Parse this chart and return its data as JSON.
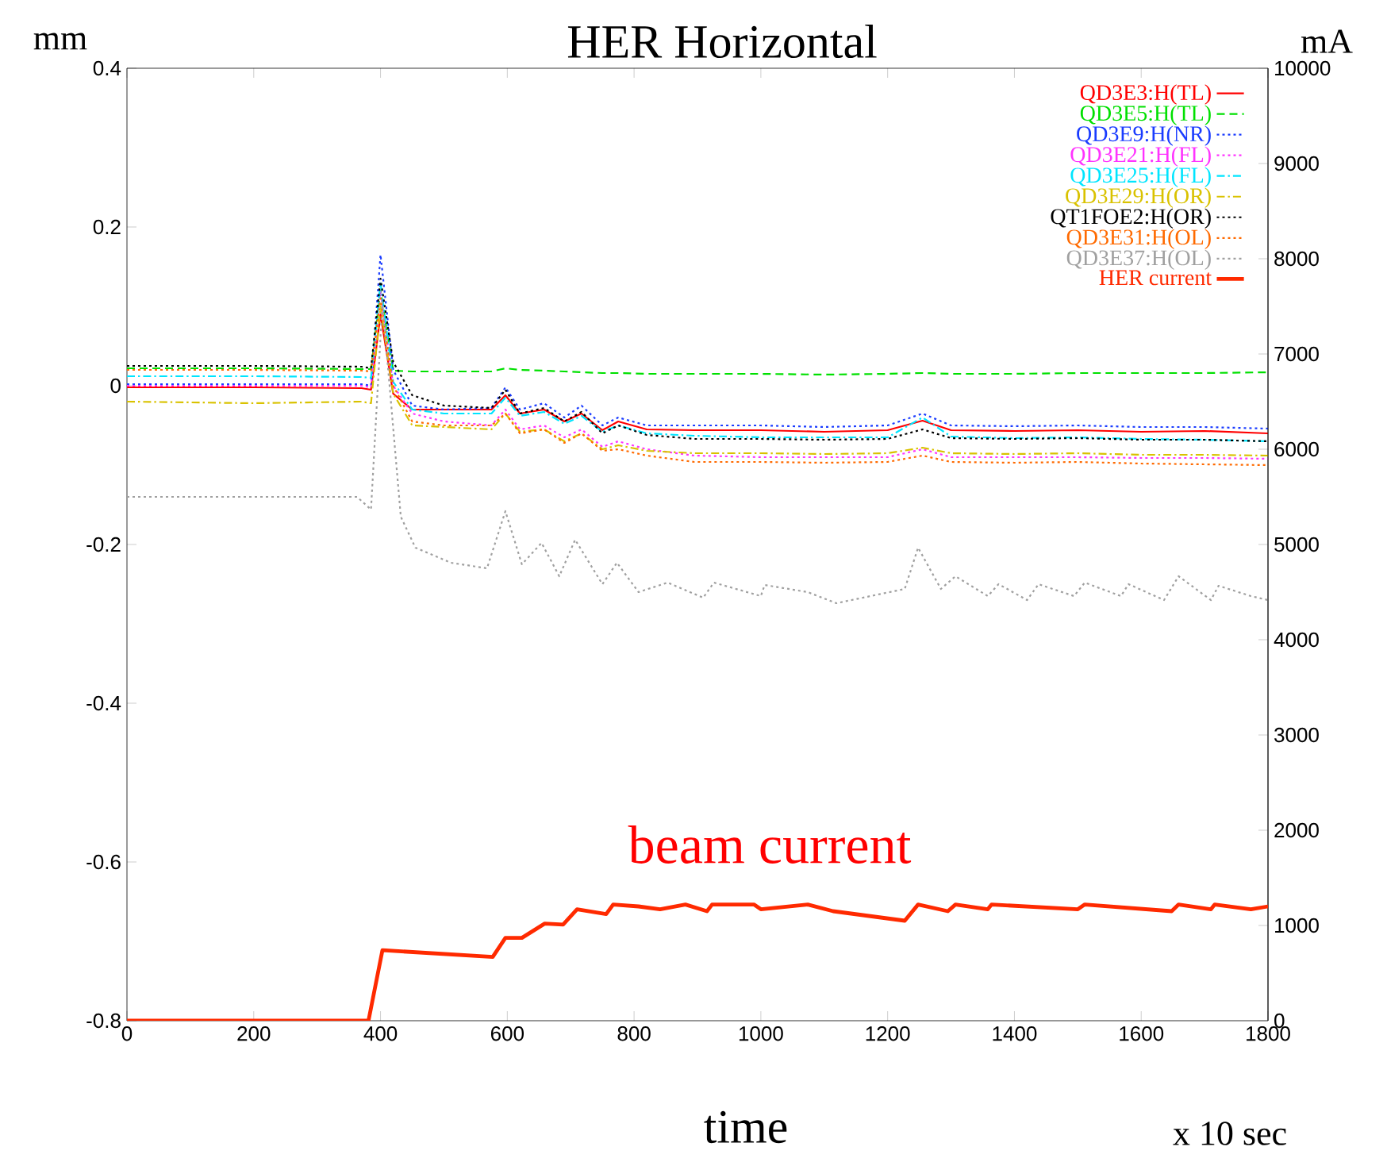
{
  "chart_data": {
    "type": "line",
    "title": "HER Horizontal",
    "xlabel": "time",
    "ylabel": "mm",
    "y2label": "mA",
    "annotations": [
      "beam current",
      "x 10 sec"
    ],
    "xlim": [
      0,
      1800
    ],
    "xticks": [
      0,
      200,
      400,
      600,
      800,
      1000,
      1200,
      1400,
      1600,
      1800
    ],
    "ylim": [
      -0.8,
      0.4
    ],
    "yticks": [
      -0.8,
      -0.6,
      -0.4,
      -0.2,
      0,
      0.2,
      0.4
    ],
    "y2lim": [
      0,
      10000
    ],
    "y2ticks": [
      0,
      1000,
      2000,
      3000,
      4000,
      5000,
      6000,
      7000,
      8000,
      9000,
      10000
    ],
    "legend": "top right",
    "marker": "none",
    "grid": false,
    "x": [
      0,
      200,
      370,
      385,
      400,
      420,
      450,
      500,
      575,
      597,
      620,
      658,
      690,
      717,
      750,
      775,
      820,
      895,
      1000,
      1100,
      1200,
      1255,
      1300,
      1400,
      1500,
      1600,
      1700,
      1800
    ],
    "series": [
      {
        "name": "QD3E3:H(TL)",
        "color": "#ff0000",
        "line_style": "solid",
        "values": [
          -0.002,
          -0.002,
          -0.003,
          -0.005,
          0.09,
          -0.01,
          -0.03,
          -0.03,
          -0.03,
          -0.012,
          -0.035,
          -0.03,
          -0.045,
          -0.035,
          -0.056,
          -0.045,
          -0.055,
          -0.056,
          -0.056,
          -0.058,
          -0.056,
          -0.044,
          -0.056,
          -0.057,
          -0.056,
          -0.058,
          -0.057,
          -0.06
        ]
      },
      {
        "name": "QD3E5:H(TL)",
        "color": "#00e000",
        "line_style": "dashed",
        "values": [
          0.022,
          0.022,
          0.021,
          0.021,
          0.12,
          0.019,
          0.018,
          0.018,
          0.018,
          0.022,
          0.02,
          0.019,
          0.018,
          0.017,
          0.016,
          0.016,
          0.015,
          0.015,
          0.015,
          0.014,
          0.015,
          0.016,
          0.015,
          0.015,
          0.016,
          0.016,
          0.016,
          0.017
        ]
      },
      {
        "name": "QD3E9:H(NR)",
        "color": "#1a3cff",
        "line_style": "dotted",
        "values": [
          0.002,
          0.002,
          0.002,
          0,
          0.165,
          0.02,
          -0.025,
          -0.03,
          -0.028,
          -0.002,
          -0.03,
          -0.022,
          -0.04,
          -0.025,
          -0.05,
          -0.04,
          -0.05,
          -0.05,
          -0.05,
          -0.052,
          -0.05,
          -0.035,
          -0.05,
          -0.051,
          -0.05,
          -0.052,
          -0.052,
          -0.054
        ]
      },
      {
        "name": "QD3E21:H(FL)",
        "color": "#ff33ff",
        "line_style": "dotted",
        "values": [
          0,
          0,
          0,
          -0.002,
          0.12,
          0,
          -0.035,
          -0.045,
          -0.05,
          -0.03,
          -0.055,
          -0.05,
          -0.065,
          -0.055,
          -0.077,
          -0.07,
          -0.08,
          -0.088,
          -0.09,
          -0.09,
          -0.09,
          -0.08,
          -0.09,
          -0.09,
          -0.09,
          -0.091,
          -0.091,
          -0.092
        ]
      },
      {
        "name": "QD3E25:H(FL)",
        "color": "#00e5ff",
        "line_style": "dashdot",
        "values": [
          0.012,
          0.012,
          0.011,
          0.01,
          0.13,
          0.005,
          -0.03,
          -0.035,
          -0.035,
          -0.015,
          -0.038,
          -0.033,
          -0.048,
          -0.038,
          -0.058,
          -0.05,
          -0.06,
          -0.063,
          -0.065,
          -0.065,
          -0.065,
          -0.04,
          -0.064,
          -0.066,
          -0.065,
          -0.067,
          -0.068,
          -0.07
        ]
      },
      {
        "name": "QD3E29:H(OR)",
        "color": "#d9c200",
        "line_style": "dashdot",
        "values": [
          -0.02,
          -0.022,
          -0.02,
          -0.022,
          0.1,
          -0.01,
          -0.05,
          -0.052,
          -0.055,
          -0.035,
          -0.058,
          -0.055,
          -0.07,
          -0.06,
          -0.08,
          -0.075,
          -0.082,
          -0.085,
          -0.085,
          -0.086,
          -0.085,
          -0.078,
          -0.085,
          -0.086,
          -0.085,
          -0.087,
          -0.087,
          -0.088
        ]
      },
      {
        "name": "QT1FOE2:H(OR)",
        "color": "#000000",
        "line_style": "dotted",
        "values": [
          0.025,
          0.025,
          0.024,
          0.022,
          0.135,
          0.03,
          -0.012,
          -0.025,
          -0.028,
          -0.005,
          -0.035,
          -0.028,
          -0.045,
          -0.033,
          -0.06,
          -0.05,
          -0.062,
          -0.067,
          -0.067,
          -0.068,
          -0.067,
          -0.055,
          -0.066,
          -0.067,
          -0.066,
          -0.068,
          -0.068,
          -0.07
        ]
      },
      {
        "name": "QD3E31:H(OL)",
        "color": "#ff6a00",
        "line_style": "dotted",
        "values": [
          0.02,
          0.02,
          0.019,
          0.018,
          0.11,
          0.0,
          -0.045,
          -0.05,
          -0.05,
          -0.035,
          -0.06,
          -0.055,
          -0.072,
          -0.06,
          -0.082,
          -0.08,
          -0.088,
          -0.096,
          -0.096,
          -0.097,
          -0.096,
          -0.088,
          -0.096,
          -0.097,
          -0.096,
          -0.098,
          -0.099,
          -0.1
        ]
      },
      {
        "name": "QD3E37:H(OL)",
        "color": "#a0a0a0",
        "line_style": "dotted",
        "x": [
          0,
          363,
          385,
          403,
          432,
          455,
          511,
          568,
          597,
          623,
          654,
          682,
          707,
          750,
          773,
          807,
          853,
          909,
          926,
          1000,
          1006,
          1074,
          1119,
          1227,
          1248,
          1284,
          1307,
          1358,
          1375,
          1420,
          1438,
          1494,
          1511,
          1568,
          1580,
          1636,
          1659,
          1710,
          1722,
          1773,
          1800
        ],
        "values": [
          -0.14,
          -0.14,
          -0.156,
          0.105,
          -0.165,
          -0.204,
          -0.223,
          -0.23,
          -0.158,
          -0.225,
          -0.198,
          -0.24,
          -0.194,
          -0.25,
          -0.223,
          -0.26,
          -0.248,
          -0.267,
          -0.248,
          -0.265,
          -0.251,
          -0.26,
          -0.274,
          -0.256,
          -0.204,
          -0.256,
          -0.24,
          -0.265,
          -0.25,
          -0.27,
          -0.25,
          -0.265,
          -0.248,
          -0.265,
          -0.25,
          -0.27,
          -0.24,
          -0.27,
          -0.252,
          -0.265,
          -0.27
        ]
      },
      {
        "name": "HER current",
        "color": "#ff2a00",
        "line_style": "solid",
        "axis": "y2",
        "x": [
          0,
          364,
          381,
          403,
          577,
          597,
          623,
          659,
          688,
          710,
          756,
          767,
          807,
          841,
          881,
          915,
          923,
          989,
          1000,
          1074,
          1114,
          1227,
          1248,
          1295,
          1307,
          1358,
          1364,
          1500,
          1511,
          1648,
          1659,
          1710,
          1716,
          1773,
          1800
        ],
        "values": [
          0,
          0,
          0,
          740,
          670,
          870,
          870,
          1020,
          1010,
          1170,
          1120,
          1220,
          1200,
          1170,
          1220,
          1150,
          1220,
          1220,
          1170,
          1220,
          1150,
          1050,
          1220,
          1150,
          1220,
          1170,
          1220,
          1170,
          1220,
          1150,
          1220,
          1170,
          1220,
          1170,
          1200
        ]
      }
    ]
  }
}
